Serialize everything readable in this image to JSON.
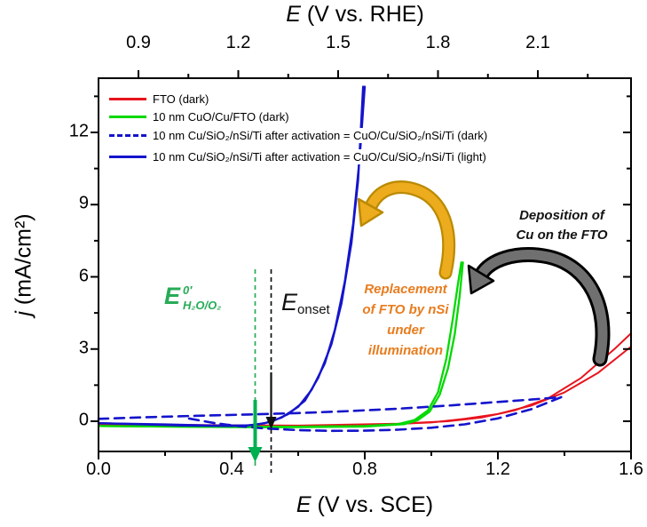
{
  "figure": {
    "type": "cyclic-voltammetry-plot",
    "background": "#ffffff"
  },
  "colors": {
    "fto_dark": "#e8141e",
    "cuo_cu_fto_dark": "#00d900",
    "cu_sio2_nsi_ti": "#1414cc",
    "green_annotation": "#27ab57",
    "green_arrow": "#00b050",
    "orange_text": "#e87c1e",
    "gold_arrow": "#edab1e",
    "gold_arrow_edge": "#bb8a00",
    "gray_arrow": "#707070",
    "frame": "#000000"
  },
  "axes": {
    "bottom": {
      "title_italic": "E",
      "title_rest": " (V vs. SCE)",
      "major": [
        0.0,
        0.4,
        0.8,
        1.2,
        1.6
      ],
      "labels": [
        "0.0",
        "0.4",
        "0.8",
        "1.2",
        "1.6"
      ],
      "minor": [
        0.2,
        0.6,
        1.0,
        1.4
      ],
      "range": [
        0.0,
        1.6
      ]
    },
    "top": {
      "title_italic": "E",
      "title_rest": " (V vs. RHE)",
      "major": [
        0.9,
        1.2,
        1.5,
        1.8,
        2.1
      ],
      "labels": [
        "0.9",
        "1.2",
        "1.5",
        "1.8",
        "2.1"
      ],
      "minor": [
        1.05,
        1.35,
        1.65,
        1.95,
        2.25
      ],
      "offset_vs_sce": 0.78
    },
    "left": {
      "title_italic": "j",
      "title_rest": " (mA/cm²)",
      "major": [
        0,
        3,
        6,
        9,
        12
      ],
      "labels": [
        "0",
        "3",
        "6",
        "9",
        "12"
      ],
      "minor": [
        1.5,
        4.5,
        7.5,
        10.5,
        13.5
      ],
      "range": [
        -1.26,
        14.25
      ]
    }
  },
  "legend": {
    "items": [
      {
        "label": "FTO (dark)",
        "color": "#e8141e",
        "dash": false
      },
      {
        "label": "10 nm CuO/Cu/FTO (dark)",
        "color": "#00d900",
        "dash": false
      },
      {
        "label": "10 nm Cu/SiO₂/nSi/Ti after activation = CuO/Cu/SiO₂/nSi/Ti (dark)",
        "color": "#1414cc",
        "dash": true
      },
      {
        "label": "10 nm Cu/SiO₂/nSi/Ti after activation = CuO/Cu/SiO₂/nSi/Ti (light)",
        "color": "#1414cc",
        "dash": false
      }
    ]
  },
  "annotations": {
    "e0_label": {
      "symbol": "E",
      "sup": "0′",
      "sub": "H₂O/O₂",
      "x_sce": 0.47
    },
    "onset_label": {
      "symbol": "E",
      "sub": "onset",
      "x_sce": 0.52
    },
    "replacement": {
      "lines": [
        "Replacement",
        "of FTO by nSi",
        "under",
        "illumination"
      ]
    },
    "deposition": {
      "lines": [
        "Deposition of",
        "Cu on the FTO"
      ]
    }
  },
  "chart_data": {
    "type": "line",
    "xlabel": "E (V vs. SCE)",
    "xlabel_top": "E (V vs. RHE)",
    "ylabel": "j (mA/cm2)",
    "xlim": [
      0.0,
      1.6
    ],
    "ylim": [
      -1.26,
      14.25
    ],
    "grid": false,
    "legend_position": "top-left",
    "series": [
      {
        "name": "FTO (dark)",
        "color": "#e8141e",
        "dash": false,
        "width": 2,
        "branches": [
          {
            "x": [
              0,
              0.3,
              0.6,
              0.9,
              1.05,
              1.15,
              1.25,
              1.35,
              1.45,
              1.55,
              1.6
            ],
            "y": [
              -0.12,
              -0.16,
              -0.18,
              -0.1,
              0.0,
              0.15,
              0.45,
              0.95,
              1.8,
              3.0,
              3.65
            ]
          },
          {
            "x": [
              1.6,
              1.5,
              1.4,
              1.3,
              1.2,
              1.1,
              1.0,
              0.85,
              0.6,
              0.3,
              0
            ],
            "y": [
              3.1,
              2.0,
              1.2,
              0.65,
              0.3,
              0.1,
              -0.05,
              -0.14,
              -0.2,
              -0.2,
              -0.15
            ]
          }
        ]
      },
      {
        "name": "10 nm CuO/Cu/FTO (dark)",
        "color": "#00d900",
        "dash": false,
        "width": 2.3,
        "branches": [
          {
            "x": [
              0,
              0.3,
              0.6,
              0.8,
              0.9,
              0.95,
              0.99,
              1.02,
              1.045,
              1.065,
              1.08,
              1.09
            ],
            "y": [
              -0.2,
              -0.23,
              -0.23,
              -0.2,
              -0.12,
              0.05,
              0.45,
              1.2,
              2.6,
              4.3,
              5.7,
              6.6
            ]
          },
          {
            "x": [
              1.095,
              1.085,
              1.07,
              1.05,
              1.025,
              0.995,
              0.96,
              0.92,
              0.8,
              0.5,
              0.2,
              0
            ],
            "y": [
              6.6,
              5.2,
              3.6,
              2.2,
              1.1,
              0.4,
              0.05,
              -0.12,
              -0.22,
              -0.25,
              -0.22,
              -0.2
            ]
          }
        ]
      },
      {
        "name": "10 nm Cu/SiO2/nSi/Ti after activation = CuO/Cu/SiO2/nSi/Ti (dark)",
        "color": "#1414cc",
        "dash": true,
        "width": 2.6,
        "branches": [
          {
            "x": [
              0,
              0.15,
              0.3,
              0.45,
              0.6,
              0.75,
              0.9,
              1.05,
              1.2,
              1.3,
              1.39
            ],
            "y": [
              0.1,
              0.17,
              0.23,
              0.28,
              0.34,
              0.42,
              0.52,
              0.65,
              0.8,
              0.9,
              1.0
            ]
          },
          {
            "x": [
              1.39,
              1.3,
              1.2,
              1.1,
              1.0,
              0.9,
              0.8,
              0.7,
              0.6,
              0.5,
              0.42,
              0.35,
              0.27
            ],
            "y": [
              1.0,
              0.5,
              0.12,
              -0.13,
              -0.27,
              -0.35,
              -0.39,
              -0.4,
              -0.37,
              -0.3,
              -0.2,
              -0.08,
              0.12
            ]
          }
        ]
      },
      {
        "name": "10 nm Cu/SiO2/nSi/Ti after activation = CuO/Cu/SiO2/nSi/Ti (light)",
        "color": "#1414cc",
        "dash": false,
        "width": 2.3,
        "branches": [
          {
            "x": [
              0,
              0.2,
              0.35,
              0.45,
              0.5,
              0.55,
              0.6,
              0.64,
              0.68,
              0.71,
              0.74,
              0.765,
              0.785,
              0.8
            ],
            "y": [
              -0.08,
              -0.13,
              -0.18,
              -0.17,
              -0.08,
              0.15,
              0.6,
              1.3,
              2.4,
              3.8,
              5.8,
              8.2,
              11.0,
              13.9
            ]
          },
          {
            "x": [
              0.795,
              0.78,
              0.76,
              0.73,
              0.7,
              0.66,
              0.62,
              0.57,
              0.52,
              0.47,
              0.4,
              0.25,
              0.1,
              0
            ],
            "y": [
              13.9,
              10.0,
              7.4,
              4.9,
              3.2,
              1.8,
              0.85,
              0.3,
              -0.02,
              -0.15,
              -0.2,
              -0.18,
              -0.12,
              -0.08
            ]
          }
        ]
      }
    ],
    "markers": {
      "e0_vertical_line_v": 0.47,
      "onset_vertical_line_v": 0.52
    }
  }
}
